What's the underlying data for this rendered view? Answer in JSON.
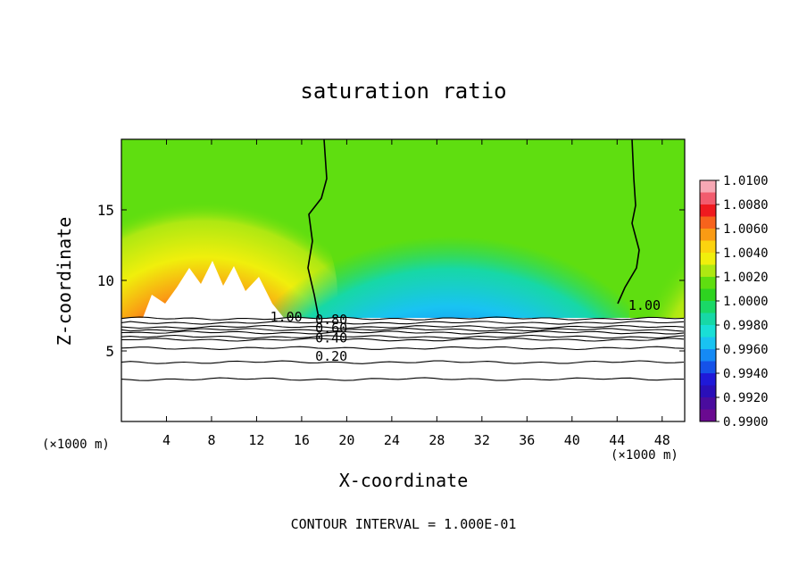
{
  "chart_data": {
    "type": "heatmap",
    "title": "saturation ratio",
    "xlabel": "X-coordinate",
    "ylabel": "Z-coordinate",
    "x_unit_left": "(×1000 m)",
    "x_unit_right": "(×1000 m)",
    "footer": "CONTOUR INTERVAL = 1.000E-01",
    "xlim": [
      0,
      50
    ],
    "ylim": [
      0,
      20
    ],
    "x_ticks": [
      4,
      8,
      12,
      16,
      20,
      24,
      28,
      32,
      36,
      40,
      44,
      48
    ],
    "y_ticks": [
      5,
      10,
      15
    ],
    "colorbar": {
      "levels": [
        "1.0100",
        "1.0080",
        "1.0060",
        "1.0040",
        "1.0020",
        "1.0000",
        "0.9980",
        "0.9960",
        "0.9940",
        "0.9920",
        "0.9900"
      ],
      "colors": [
        "#f7a8b4",
        "#f25c6e",
        "#ef1a1f",
        "#f7631c",
        "#fa9b14",
        "#fcd30f",
        "#f0ef0c",
        "#aee812",
        "#5fde10",
        "#2ed320",
        "#1ad867",
        "#17d8a6",
        "#19dfd6",
        "#19c3f2",
        "#158af5",
        "#1552e8",
        "#1f19d8",
        "#2a0fb8",
        "#4a0c9e",
        "#6a0a90"
      ]
    },
    "contour_labels": [
      {
        "text": "1.00",
        "x": 13.2,
        "y": 7.1
      },
      {
        "text": "0.80",
        "x": 17.2,
        "y": 6.9
      },
      {
        "text": "0.60",
        "x": 17.2,
        "y": 6.3
      },
      {
        "text": "0.40",
        "x": 17.2,
        "y": 5.6
      },
      {
        "text": "0.20",
        "x": 17.2,
        "y": 4.3
      },
      {
        "text": "1.00",
        "x": 45.0,
        "y": 7.9
      }
    ],
    "contour_lines_z": [
      7.3,
      7.0,
      6.7,
      6.5,
      6.3,
      6.0,
      5.8,
      5.2,
      4.2,
      3.0
    ]
  }
}
